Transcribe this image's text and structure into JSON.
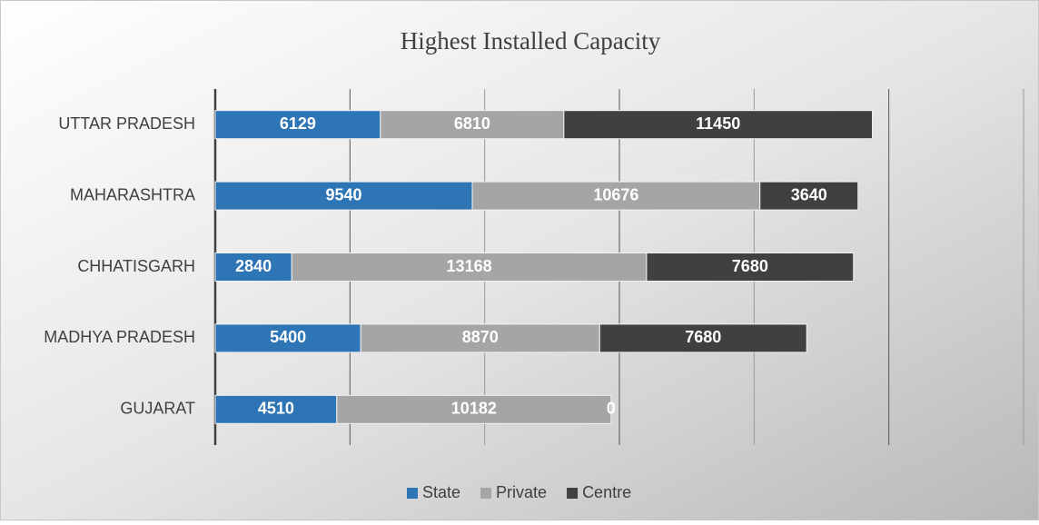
{
  "chart_data": {
    "type": "stacked_hbar",
    "title": "Highest Installed Capacity",
    "categories": [
      "UTTAR PRADESH",
      "MAHARASHTRA",
      "CHHATISGARH",
      "MADHYA PRADESH",
      "GUJARAT"
    ],
    "series": [
      {
        "name": "State",
        "color": "#2e75b6",
        "values": [
          6129,
          9540,
          2840,
          5400,
          4510
        ]
      },
      {
        "name": "Private",
        "color": "#a5a5a5",
        "values": [
          6810,
          10676,
          13168,
          8870,
          10182
        ]
      },
      {
        "name": "Centre",
        "color": "#404040",
        "values": [
          11450,
          3640,
          7680,
          7680,
          0
        ]
      }
    ],
    "xlim": [
      0,
      30000
    ],
    "xticks": [
      0,
      5000,
      10000,
      15000,
      20000,
      25000,
      30000
    ],
    "grid": true,
    "legend": "bottom"
  }
}
